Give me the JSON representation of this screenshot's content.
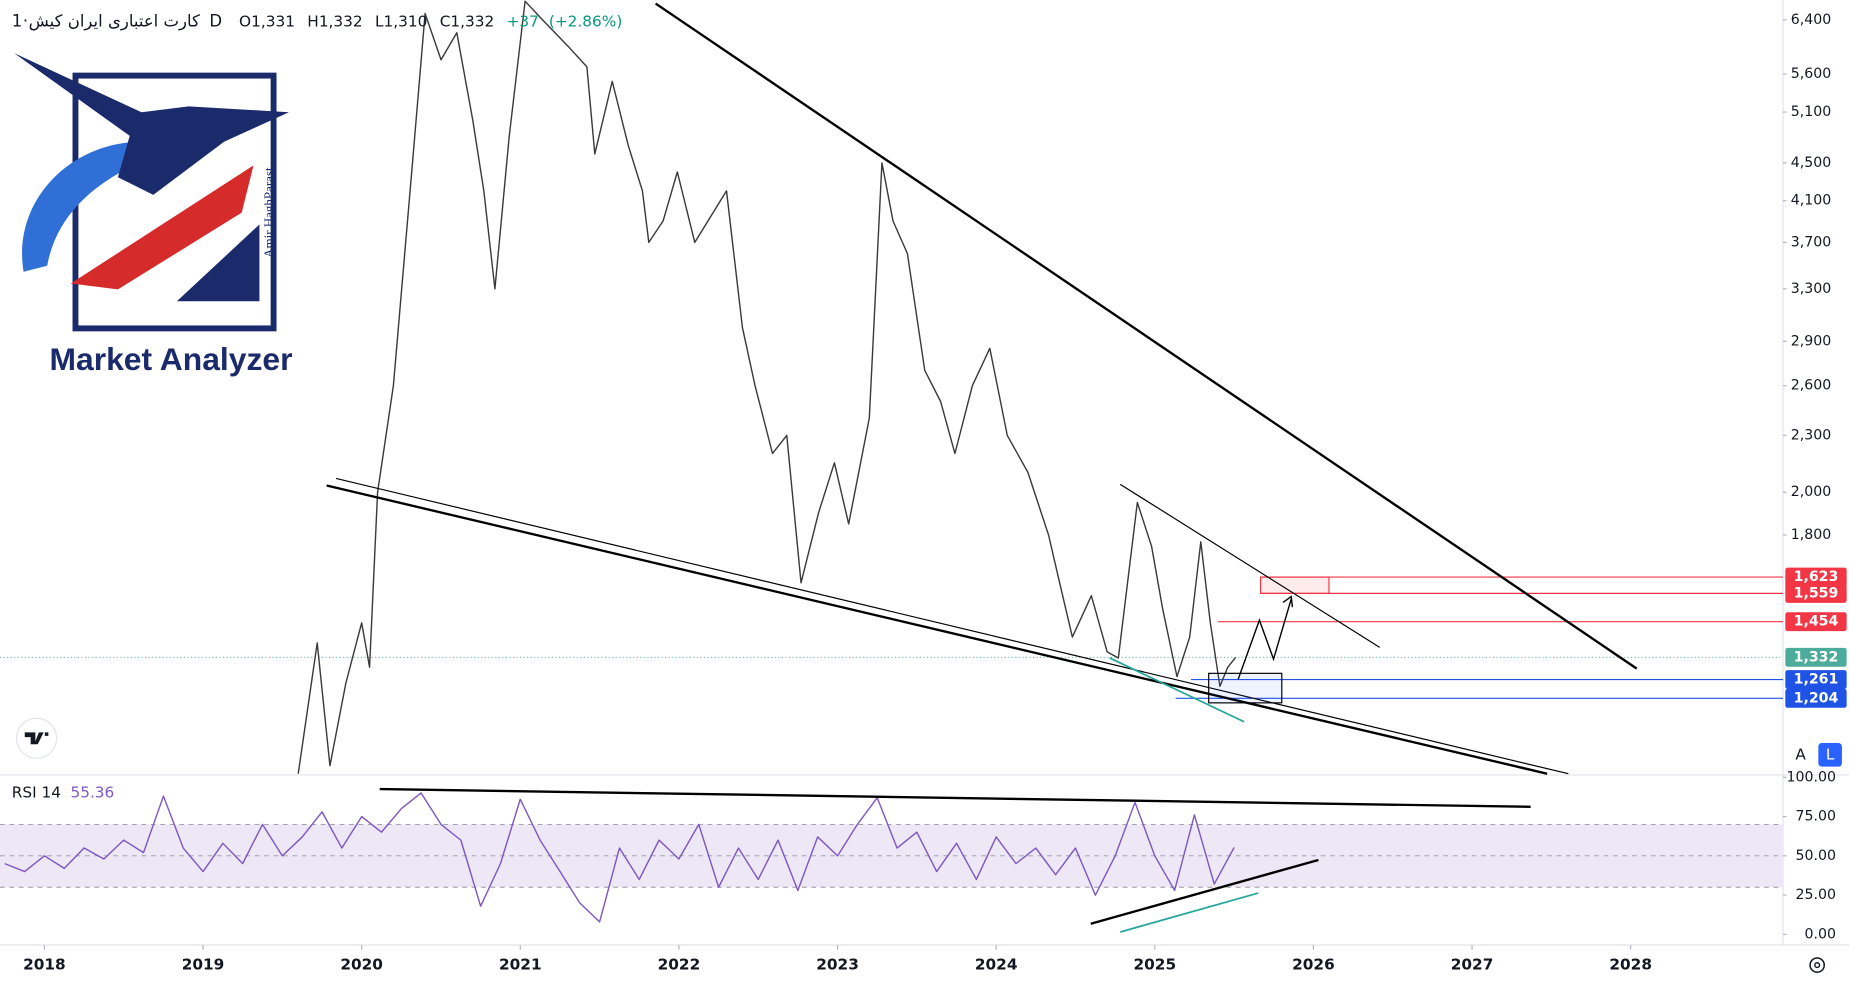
{
  "chart_data": [
    {
      "type": "line",
      "log_scale": true,
      "interval": "1D",
      "separator": "·",
      "ohlc": [
        {
          "key": "O",
          "value": "1,331"
        },
        {
          "key": "H",
          "value": "1,332"
        },
        {
          "key": "L",
          "value": "1,310"
        },
        {
          "key": "C",
          "value": "1,332"
        }
      ],
      "change": "+37",
      "change_pct": "(+2.86%)",
      "xlim": [
        2017.72,
        2028.96
      ],
      "ylim": [
        1000,
        6720
      ],
      "xticks": [
        2018,
        2019,
        2020,
        2021,
        2022,
        2023,
        2024,
        2025,
        2026,
        2027,
        2028
      ],
      "yticks": [
        {
          "value": 6400,
          "label": "6,400"
        },
        {
          "value": 5600,
          "label": "5,600"
        },
        {
          "value": 5100,
          "label": "5,100"
        },
        {
          "value": 4500,
          "label": "4,500"
        },
        {
          "value": 4100,
          "label": "4,100"
        },
        {
          "value": 3700,
          "label": "3,700"
        },
        {
          "value": 3300,
          "label": "3,300"
        },
        {
          "value": 2900,
          "label": "2,900"
        },
        {
          "value": 2600,
          "label": "2,600"
        },
        {
          "value": 2300,
          "label": "2,300"
        },
        {
          "value": 2000,
          "label": "2,000"
        },
        {
          "value": 1800,
          "label": "1,800"
        }
      ],
      "series": [
        {
          "name": "کارت اعتباری ایران کیش",
          "color": "#3a3a3a",
          "x": [
            2019.6,
            2019.72,
            2019.8,
            2019.9,
            2020.0,
            2020.05,
            2020.1,
            2020.2,
            2020.32,
            2020.4,
            2020.5,
            2020.6,
            2020.7,
            2020.77,
            2020.84,
            2020.93,
            2021.03,
            2021.14,
            2021.3,
            2021.42,
            2021.47,
            2021.58,
            2021.68,
            2021.77,
            2021.81,
            2021.9,
            2021.99,
            2022.1,
            2022.3,
            2022.4,
            2022.48,
            2022.59,
            2022.68,
            2022.77,
            2022.88,
            2022.98,
            2023.07,
            2023.2,
            2023.28,
            2023.35,
            2023.44,
            2023.55,
            2023.65,
            2023.74,
            2023.85,
            2023.96,
            2024.07,
            2024.2,
            2024.33,
            2024.4,
            2024.48,
            2024.6,
            2024.7,
            2024.77,
            2024.89,
            2024.98,
            2025.05,
            2025.14,
            2025.22,
            2025.29,
            2025.35,
            2025.41,
            2025.46,
            2025.51
          ],
          "values": [
            1000,
            1380,
            1020,
            1250,
            1450,
            1300,
            2000,
            2600,
            4500,
            6500,
            5800,
            6200,
            5000,
            4200,
            3300,
            4800,
            6700,
            6400,
            6000,
            5700,
            4600,
            5500,
            4700,
            4200,
            3700,
            3900,
            4400,
            3700,
            4200,
            3000,
            2600,
            2200,
            2300,
            1600,
            1900,
            2150,
            1850,
            2400,
            4500,
            3900,
            3600,
            2700,
            2500,
            2200,
            2600,
            2850,
            2300,
            2100,
            1800,
            1600,
            1400,
            1550,
            1350,
            1330,
            1950,
            1750,
            1500,
            1270,
            1400,
            1770,
            1450,
            1240,
            1300,
            1332
          ]
        }
      ],
      "price_lines": [
        {
          "value": 1623,
          "label": "1,623",
          "color": "#f23645"
        },
        {
          "value": 1559,
          "label": "1,559",
          "color": "#f23645"
        },
        {
          "value": 1454,
          "label": "1,454",
          "color": "#f23645"
        },
        {
          "value": 1332,
          "label": "1,332",
          "color": "#4cab9a"
        },
        {
          "value": 1261,
          "label": "1,261",
          "color": "#1e53e5"
        },
        {
          "value": 1204,
          "label": "1,204",
          "color": "#1e53e5"
        }
      ]
    },
    {
      "type": "line",
      "xlim": [
        2017.72,
        2028.96
      ],
      "ylim": [
        0,
        100
      ],
      "yticks": [
        {
          "value": 100,
          "label": "100.00"
        },
        {
          "value": 75,
          "label": "75.00"
        },
        {
          "value": 50,
          "label": "50.00"
        },
        {
          "value": 25,
          "label": "25.00"
        },
        {
          "value": 0,
          "label": "0.00"
        }
      ],
      "band": [
        30,
        70
      ],
      "band_color": "#ede7f6",
      "hlines": [
        70,
        50,
        30
      ],
      "series": [
        {
          "name": "RSI 14",
          "color": "#7e57c2",
          "x": [
            2017.75,
            2017.875,
            2018,
            2018.125,
            2018.25,
            2018.375,
            2018.5,
            2018.625,
            2018.75,
            2018.875,
            2019,
            2019.125,
            2019.25,
            2019.375,
            2019.5,
            2019.625,
            2019.75,
            2019.875,
            2020,
            2020.125,
            2020.25,
            2020.375,
            2020.5,
            2020.625,
            2020.75,
            2020.875,
            2021,
            2021.125,
            2021.25,
            2021.375,
            2021.5,
            2021.625,
            2021.75,
            2021.875,
            2022,
            2022.125,
            2022.25,
            2022.375,
            2022.5,
            2022.625,
            2022.75,
            2022.875,
            2023,
            2023.125,
            2023.25,
            2023.375,
            2023.5,
            2023.625,
            2023.75,
            2023.875,
            2024,
            2024.125,
            2024.25,
            2024.375,
            2024.5,
            2024.625,
            2024.75,
            2024.875,
            2025,
            2025.125,
            2025.25,
            2025.375,
            2025.5
          ],
          "values": [
            45,
            40,
            50,
            42,
            55,
            48,
            60,
            52,
            88,
            55,
            40,
            58,
            45,
            70,
            50,
            62,
            78,
            55,
            75,
            65,
            80,
            90,
            70,
            60,
            18,
            45,
            86,
            60,
            40,
            20,
            8,
            55,
            35,
            60,
            48,
            70,
            30,
            55,
            35,
            60,
            28,
            62,
            50,
            70,
            87,
            55,
            65,
            40,
            58,
            35,
            62,
            45,
            55,
            38,
            55,
            25,
            50,
            84,
            50,
            28,
            76,
            32,
            55.36
          ]
        }
      ]
    }
  ],
  "logo": {
    "brand": "Market Analyzer",
    "author": "Amir HaghParast"
  },
  "ui": {
    "buttons": [
      "A",
      "L"
    ]
  }
}
